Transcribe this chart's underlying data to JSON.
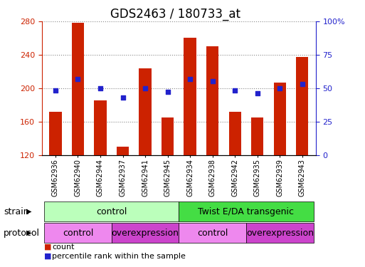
{
  "title": "GDS2463 / 180733_at",
  "samples": [
    "GSM62936",
    "GSM62940",
    "GSM62944",
    "GSM62937",
    "GSM62941",
    "GSM62945",
    "GSM62934",
    "GSM62938",
    "GSM62942",
    "GSM62935",
    "GSM62939",
    "GSM62943"
  ],
  "counts": [
    172,
    278,
    185,
    130,
    224,
    165,
    260,
    250,
    172,
    165,
    207,
    237
  ],
  "percentiles": [
    48,
    57,
    50,
    43,
    50,
    47,
    57,
    55,
    48,
    46,
    50,
    53
  ],
  "ylim_left": [
    120,
    280
  ],
  "ylim_right": [
    0,
    100
  ],
  "yticks_left": [
    120,
    160,
    200,
    240,
    280
  ],
  "yticks_right": [
    0,
    25,
    50,
    75,
    100
  ],
  "bar_color": "#cc2200",
  "dot_color": "#2222cc",
  "strain_groups": [
    {
      "label": "control",
      "start": 0,
      "end": 6,
      "color": "#bbffbb"
    },
    {
      "label": "Twist E/DA transgenic",
      "start": 6,
      "end": 12,
      "color": "#44dd44"
    }
  ],
  "protocol_groups": [
    {
      "label": "control",
      "start": 0,
      "end": 3,
      "color": "#ee88ee"
    },
    {
      "label": "overexpression",
      "start": 3,
      "end": 6,
      "color": "#cc44cc"
    },
    {
      "label": "control",
      "start": 6,
      "end": 9,
      "color": "#ee88ee"
    },
    {
      "label": "overexpression",
      "start": 9,
      "end": 12,
      "color": "#cc44cc"
    }
  ],
  "legend_count_label": "count",
  "legend_pct_label": "percentile rank within the sample",
  "strain_label": "strain",
  "protocol_label": "protocol",
  "title_fontsize": 12,
  "tick_fontsize": 8,
  "row_label_fontsize": 9,
  "sample_fontsize": 7
}
